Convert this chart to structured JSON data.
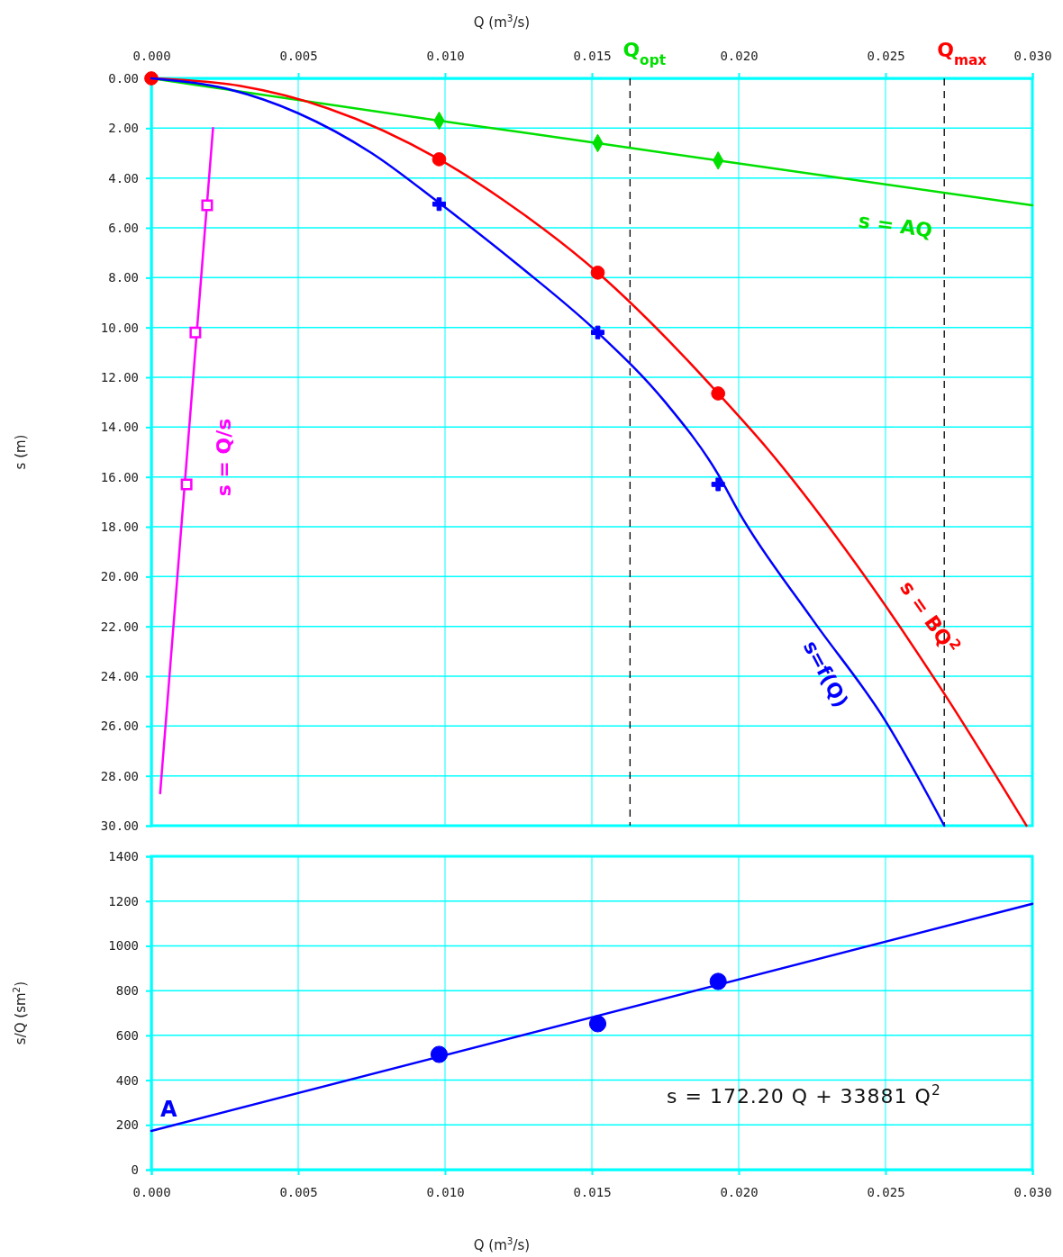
{
  "chart_data": [
    {
      "type": "line",
      "xlabel": "Q  (m$^{3}$/s)",
      "ylabel": "s  (m)",
      "xlim": [
        0,
        0.03
      ],
      "xticks": [
        {
          "value": 0,
          "label": "0.000"
        },
        {
          "value": 0.005,
          "label": "0.005"
        },
        {
          "value": 0.01,
          "label": "0.010"
        },
        {
          "value": 0.015,
          "label": "0.015"
        },
        {
          "value": 0.02,
          "label": "0.020"
        },
        {
          "value": 0.025,
          "label": "0.025"
        },
        {
          "value": 0.03,
          "label": "0.030"
        }
      ],
      "ylim": [
        30,
        0
      ],
      "yticks": [
        {
          "value": 0,
          "label": "0.00"
        },
        {
          "value": 2,
          "label": "2.00"
        },
        {
          "value": 4,
          "label": "4.00"
        },
        {
          "value": 6,
          "label": "6.00"
        },
        {
          "value": 8,
          "label": "8.00"
        },
        {
          "value": 10,
          "label": "10.00"
        },
        {
          "value": 12,
          "label": "12.00"
        },
        {
          "value": 14,
          "label": "14.00"
        },
        {
          "value": 16,
          "label": "16.00"
        },
        {
          "value": 18,
          "label": "18.00"
        },
        {
          "value": 20,
          "label": "20.00"
        },
        {
          "value": 22,
          "label": "22.00"
        },
        {
          "value": 24,
          "label": "24.00"
        },
        {
          "value": 26,
          "label": "26.00"
        },
        {
          "value": 28,
          "label": "28.00"
        },
        {
          "value": 30,
          "label": "30.00"
        }
      ],
      "grid": true,
      "series": [
        {
          "name": "s = AQ",
          "color": "#00e000",
          "line_style": "solid",
          "marker": "none",
          "x": [
            0,
            0.0098,
            0.0152,
            0.0193,
            0.03
          ],
          "values": [
            0,
            1.7,
            2.6,
            3.3,
            5.1
          ]
        },
        {
          "type": "scatter",
          "color": "#00e000",
          "marker": "diamond",
          "x": [
            0.0098,
            0.0152,
            0.0193
          ],
          "values": [
            1.7,
            2.6,
            3.3
          ]
        },
        {
          "name": "s = BQ$^{2}$",
          "color": "#ff0000",
          "line_style": "solid",
          "marker": "none",
          "x": [
            0,
            0.003,
            0.006,
            0.0098,
            0.012,
            0.0152,
            0.018,
            0.0193,
            0.021,
            0.024,
            0.027,
            0.0298
          ],
          "values": [
            0,
            0.3,
            1.2,
            3.25,
            4.9,
            7.8,
            11.0,
            12.65,
            14.9,
            19.5,
            24.7,
            30
          ]
        },
        {
          "type": "scatter",
          "color": "#ff0000",
          "marker": "circle",
          "x": [
            0,
            0.0098,
            0.0152,
            0.0193
          ],
          "values": [
            0,
            3.25,
            7.8,
            12.65
          ]
        },
        {
          "name": "s=f(Q)",
          "color": "#0000ff",
          "line_style": "solid",
          "marker": "none",
          "x": [
            0,
            0.0025,
            0.005,
            0.0075,
            0.0098,
            0.0125,
            0.0152,
            0.0175,
            0.0193,
            0.02,
            0.0225,
            0.025,
            0.027
          ],
          "values": [
            0,
            0.4,
            1.4,
            3.0,
            5.0,
            7.5,
            10.2,
            13.0,
            15.9,
            17.4,
            21.7,
            25.8,
            30
          ]
        },
        {
          "type": "scatter",
          "color": "#0000ff",
          "marker": "cross",
          "x": [
            0.0098,
            0.0152,
            0.0193
          ],
          "values": [
            5.05,
            10.2,
            16.3
          ]
        },
        {
          "name": "s = Q/s",
          "color": "#ff00ff",
          "line_style": "solid",
          "marker": "none",
          "x": [
            0.0021,
            0.0003
          ],
          "values": [
            2.0,
            28.7
          ]
        },
        {
          "type": "scatter",
          "color": "#ff00ff",
          "marker": "square",
          "x": [
            0.0019,
            0.0015,
            0.0012
          ],
          "values": [
            5.1,
            10.2,
            16.3
          ]
        }
      ],
      "ref_lines": [
        {
          "axis": "x",
          "value": 0.0163,
          "label": "Q$_{opt}$",
          "line_style": "dashed"
        },
        {
          "axis": "x",
          "value": 0.027,
          "label": "Q$_{max}$",
          "line_style": "dashed"
        }
      ]
    },
    {
      "type": "line",
      "xlabel": "Q  (m$^{3}$/s)",
      "ylabel": "s/Q  (sm$^{2}$)",
      "xlim": [
        0,
        0.03
      ],
      "xticks": [
        {
          "value": 0,
          "label": "0.000"
        },
        {
          "value": 0.005,
          "label": "0.005"
        },
        {
          "value": 0.01,
          "label": "0.010"
        },
        {
          "value": 0.015,
          "label": "0.015"
        },
        {
          "value": 0.02,
          "label": "0.020"
        },
        {
          "value": 0.025,
          "label": "0.025"
        },
        {
          "value": 0.03,
          "label": "0.030"
        }
      ],
      "ylim": [
        0,
        1400
      ],
      "yticks": [
        0,
        200,
        400,
        600,
        800,
        1000,
        1200,
        1400
      ],
      "grid": true,
      "series": [
        {
          "color": "#0000ff",
          "line_style": "solid",
          "marker": "none",
          "x": [
            0,
            0.03
          ],
          "values": [
            173,
            1188
          ]
        },
        {
          "type": "scatter",
          "color": "#0000ff",
          "marker": "circle",
          "x": [
            0.0098,
            0.0152,
            0.0193
          ],
          "values": [
            515,
            652,
            841
          ]
        }
      ],
      "annotations": [
        {
          "text": "A",
          "x": 0,
          "y": 173
        },
        "s =  172.20 Q + 33881 Q$^{2}$"
      ]
    }
  ]
}
